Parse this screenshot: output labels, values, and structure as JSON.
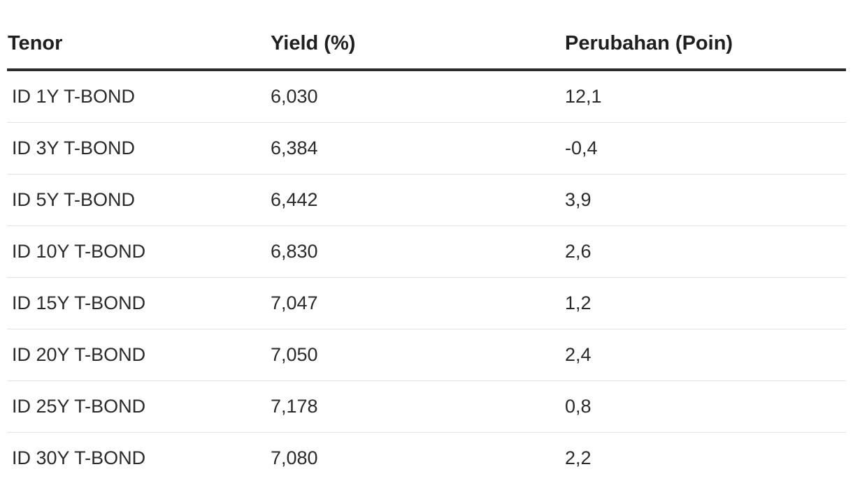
{
  "table": {
    "headers": [
      "Tenor",
      "Yield (%)",
      "Perubahan (Poin)"
    ],
    "rows": [
      {
        "tenor": "ID 1Y T-BOND",
        "yield": "6,030",
        "change": "12,1"
      },
      {
        "tenor": "ID 3Y T-BOND",
        "yield": "6,384",
        "change": "-0,4"
      },
      {
        "tenor": "ID 5Y T-BOND",
        "yield": "6,442",
        "change": "3,9"
      },
      {
        "tenor": "ID 10Y T-BOND",
        "yield": "6,830",
        "change": "2,6"
      },
      {
        "tenor": "ID 15Y T-BOND",
        "yield": "7,047",
        "change": "1,2"
      },
      {
        "tenor": "ID 20Y T-BOND",
        "yield": "7,050",
        "change": "2,4"
      },
      {
        "tenor": "ID 25Y T-BOND",
        "yield": "7,178",
        "change": "0,8"
      },
      {
        "tenor": "ID 30Y T-BOND",
        "yield": "7,080",
        "change": "2,2"
      }
    ]
  }
}
